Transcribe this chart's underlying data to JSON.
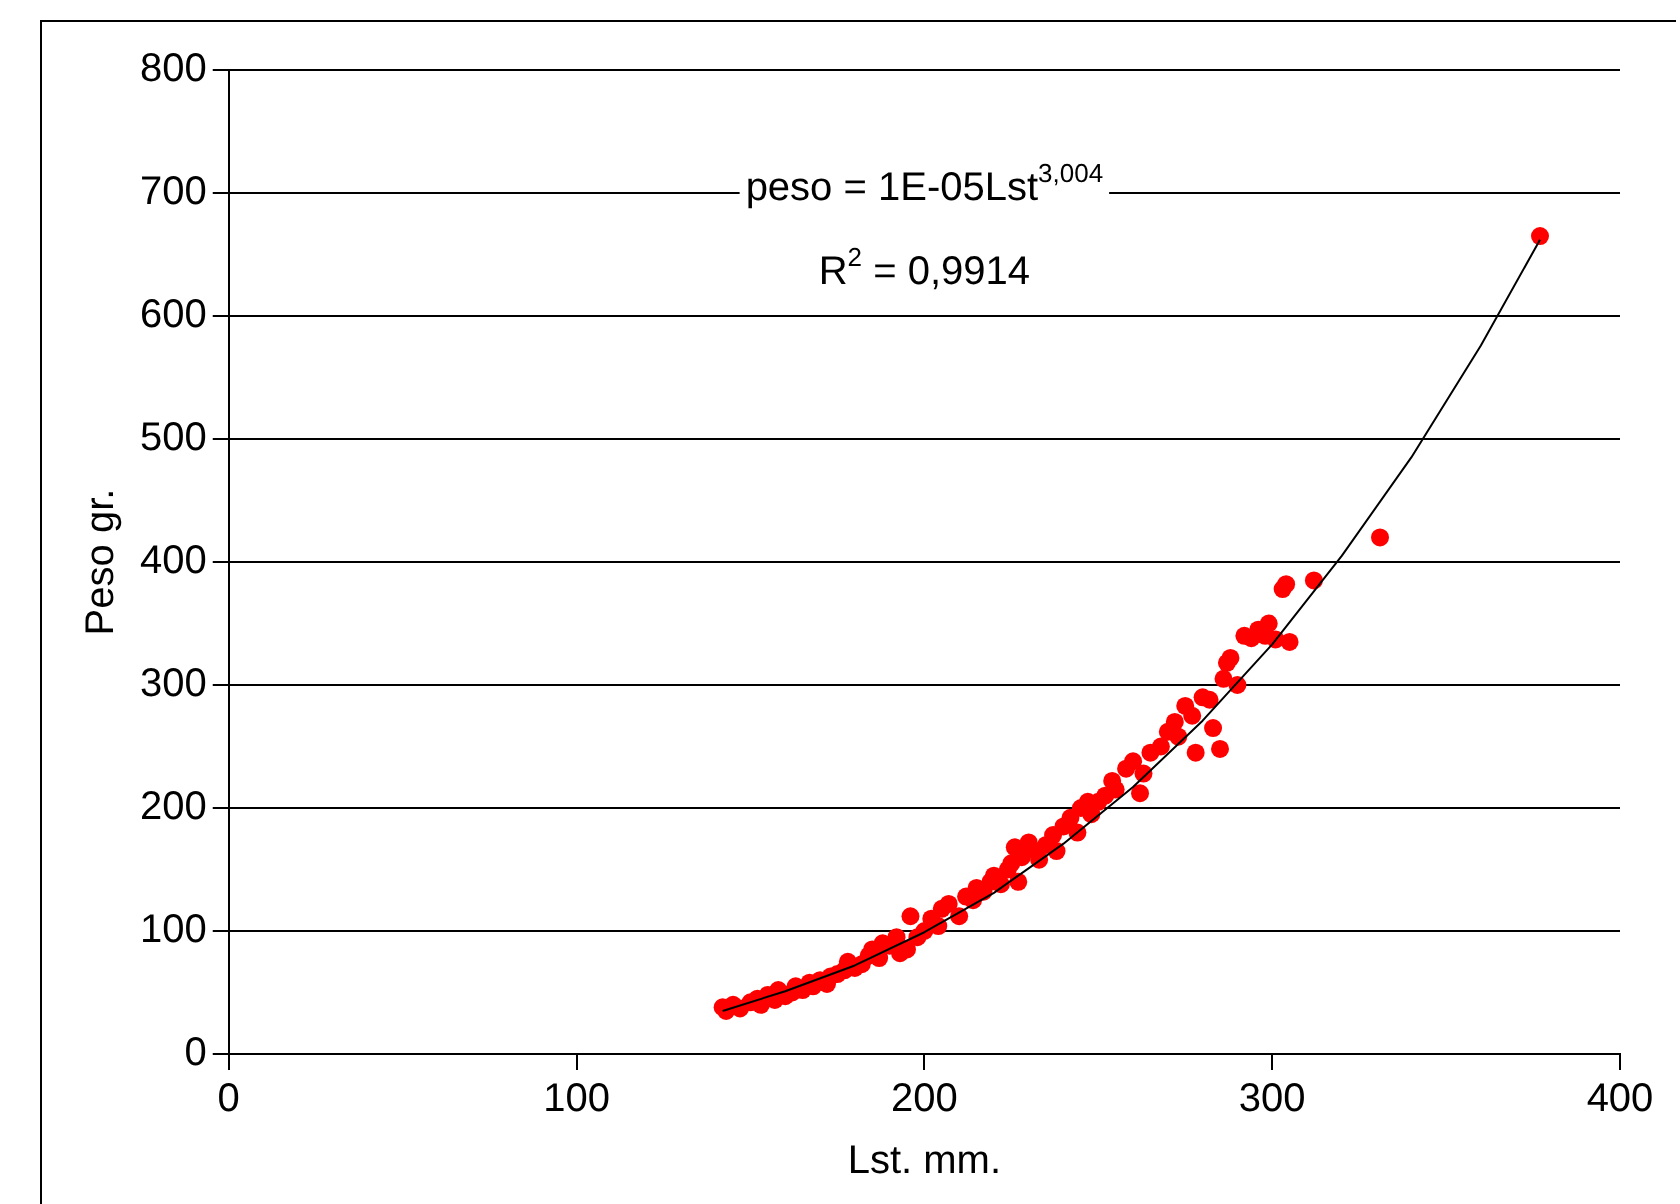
{
  "chart_data": {
    "type": "scatter",
    "xlabel": "Lst. mm.",
    "ylabel": "Peso gr.",
    "xlim": [
      0,
      400
    ],
    "xticks": [
      0,
      100,
      200,
      300,
      400
    ],
    "ylim": [
      0,
      800
    ],
    "yticks": [
      0,
      100,
      200,
      300,
      400,
      500,
      600,
      700,
      800
    ],
    "grid": "y",
    "legend": false,
    "marker": "circle",
    "annotations": [
      "peso = 1E-05Lst$^{3,004}$",
      "R$^{2}$ = 0,9914"
    ],
    "series": [
      {
        "color": "#ff0000",
        "x": [
          142,
          143,
          145,
          147,
          150,
          152,
          153,
          155,
          157,
          158,
          160,
          162,
          163,
          165,
          167,
          168,
          170,
          172,
          173,
          175,
          177,
          178,
          180,
          182,
          184,
          185,
          187,
          188,
          190,
          192,
          193,
          195,
          196,
          198,
          200,
          202,
          204,
          205,
          207,
          210,
          212,
          214,
          215,
          217,
          219,
          220,
          222,
          224,
          225,
          226,
          227,
          228,
          230,
          232,
          233,
          235,
          237,
          238,
          240,
          242,
          244,
          245,
          247,
          248,
          250,
          252,
          254,
          255,
          258,
          260,
          262,
          263,
          265,
          268,
          270,
          272,
          273,
          275,
          277,
          278,
          280,
          282,
          283,
          285,
          286,
          287,
          288,
          290,
          292,
          294,
          296,
          298,
          299,
          301,
          303,
          304,
          305,
          312,
          331,
          377
        ],
        "values": [
          38,
          35,
          40,
          37,
          42,
          45,
          40,
          48,
          44,
          52,
          47,
          50,
          55,
          52,
          58,
          55,
          60,
          57,
          63,
          65,
          68,
          75,
          70,
          73,
          80,
          85,
          78,
          90,
          88,
          95,
          82,
          85,
          112,
          95,
          100,
          110,
          104,
          118,
          122,
          112,
          128,
          125,
          135,
          132,
          140,
          145,
          138,
          150,
          155,
          168,
          140,
          160,
          172,
          165,
          158,
          170,
          178,
          165,
          185,
          192,
          180,
          200,
          205,
          195,
          205,
          210,
          222,
          215,
          232,
          238,
          212,
          228,
          245,
          250,
          262,
          270,
          258,
          283,
          275,
          245,
          290,
          288,
          265,
          248,
          305,
          318,
          322,
          300,
          340,
          338,
          345,
          340,
          350,
          337,
          378,
          382,
          335,
          385,
          420,
          665
        ]
      },
      {
        "type": "line",
        "color": "#000000",
        "marker": "none",
        "x": [
          142,
          160,
          180,
          200,
          220,
          240,
          260,
          280,
          300,
          320,
          340,
          360,
          377
        ],
        "values": [
          35,
          51,
          72,
          99,
          131,
          171,
          217,
          271,
          333,
          405,
          485,
          576,
          662
        ]
      }
    ]
  }
}
